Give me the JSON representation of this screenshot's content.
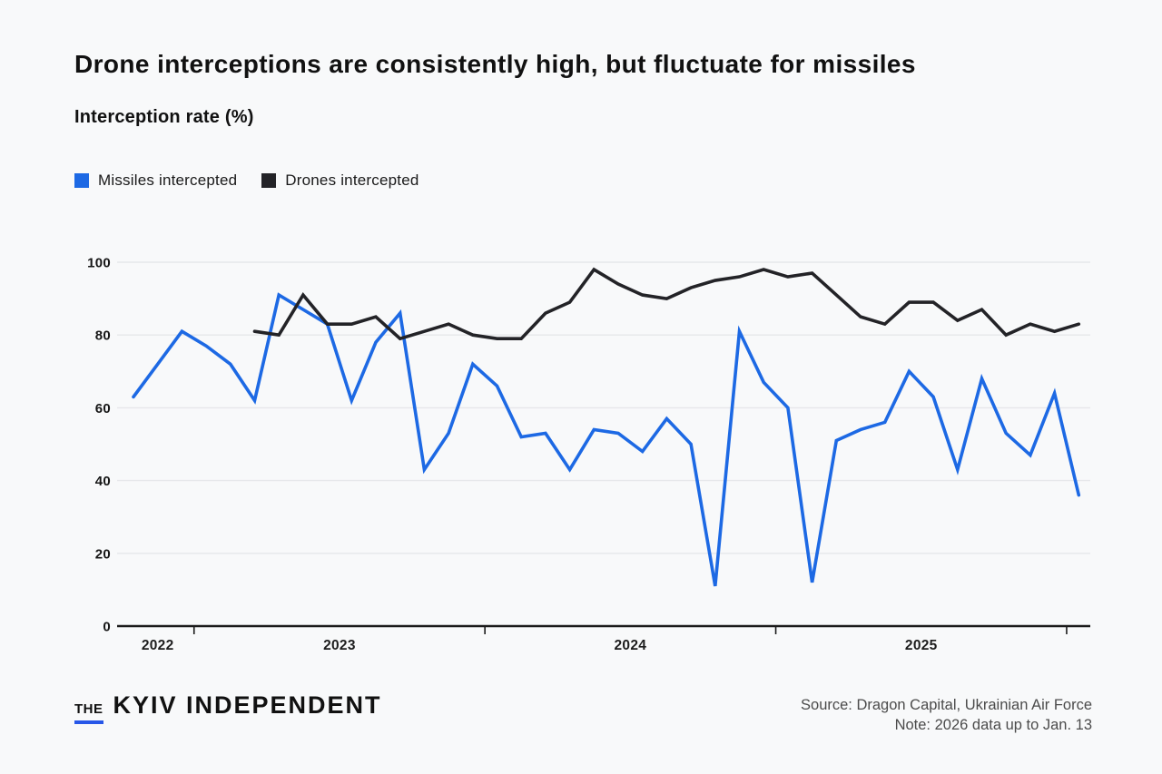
{
  "header": {
    "title": "Drone interceptions are consistently high, but fluctuate for missiles",
    "subtitle": "Interception rate (%)"
  },
  "legend": {
    "items": [
      {
        "label": "Missiles intercepted",
        "color": "#1d69e4"
      },
      {
        "label": "Drones intercepted",
        "color": "#232327"
      }
    ]
  },
  "chart_data": {
    "type": "line",
    "title": "Drone interceptions are consistently high, but fluctuate for missiles",
    "ylabel": "Interception rate (%)",
    "ylim": [
      0,
      100
    ],
    "yticks": [
      0,
      20,
      40,
      60,
      80,
      100
    ],
    "grid": "horizontal",
    "legend_position": "top-left",
    "x_year_labels": [
      "2022",
      "2023",
      "2024",
      "2025"
    ],
    "months": [
      "Oct 2022",
      "Nov 2022",
      "Dec 2022",
      "Jan 2023",
      "Feb 2023",
      "Mar 2023",
      "Apr 2023",
      "May 2023",
      "Jun 2023",
      "Jul 2023",
      "Aug 2023",
      "Sep 2023",
      "Oct 2023",
      "Nov 2023",
      "Dec 2023",
      "Jan 2024",
      "Feb 2024",
      "Mar 2024",
      "Apr 2024",
      "May 2024",
      "Jun 2024",
      "Jul 2024",
      "Aug 2024",
      "Sep 2024",
      "Oct 2024",
      "Nov 2024",
      "Dec 2024",
      "Jan 2025",
      "Feb 2025",
      "Mar 2025",
      "Apr 2025",
      "May 2025",
      "Jun 2025",
      "Jul 2025",
      "Aug 2025",
      "Sep 2025",
      "Oct 2025",
      "Nov 2025",
      "Dec 2025",
      "Jan 2026"
    ],
    "series": [
      {
        "name": "Missiles intercepted",
        "color": "#1d69e4",
        "values": [
          63,
          72,
          81,
          77,
          72,
          62,
          91,
          87,
          83,
          62,
          78,
          86,
          43,
          53,
          72,
          66,
          52,
          53,
          43,
          54,
          53,
          48,
          57,
          50,
          11,
          81,
          67,
          60,
          12,
          51,
          54,
          56,
          70,
          63,
          43,
          68,
          53,
          47,
          64,
          36
        ]
      },
      {
        "name": "Drones intercepted",
        "color": "#232327",
        "values": [
          null,
          null,
          null,
          null,
          null,
          81,
          80,
          91,
          83,
          83,
          85,
          79,
          81,
          83,
          80,
          79,
          79,
          86,
          89,
          98,
          94,
          91,
          90,
          93,
          95,
          96,
          98,
          96,
          97,
          91,
          85,
          83,
          89,
          89,
          84,
          87,
          80,
          83,
          81,
          83
        ]
      }
    ],
    "colors": {
      "grid": "#e6e7ea",
      "axis": "#1a1a1a"
    }
  },
  "footer": {
    "logo": {
      "the": "THE",
      "name": "KYIV INDEPENDENT"
    },
    "source": "Source: Dragon Capital, Ukrainian Air Force",
    "note": "Note: 2026 data up to Jan. 13"
  }
}
